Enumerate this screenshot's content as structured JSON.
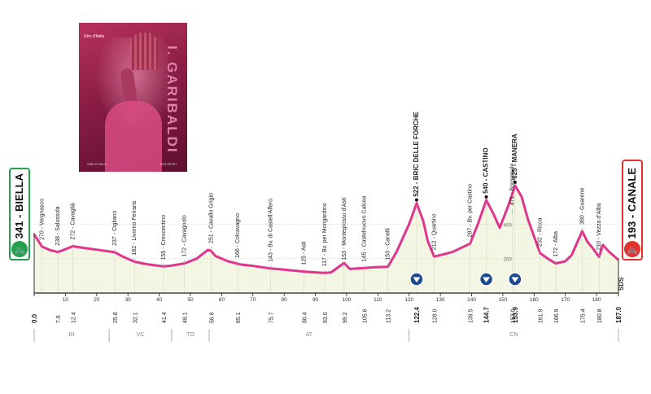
{
  "poster": {
    "logo_text": "Giro d'Italia",
    "name_text": "I. GARIBALDI",
    "footer_left": "GIRO D'ITALIA",
    "footer_right": "RCS SPORT"
  },
  "start": {
    "elevation": "341",
    "name": "BIELLA"
  },
  "finish": {
    "elevation": "193",
    "name": "CANALE"
  },
  "chart_data": {
    "type": "area",
    "title": "",
    "xlabel": "",
    "ylabel": "",
    "distance_total_km": 187.0,
    "xlim": [
      0,
      187
    ],
    "ylim": [
      0,
      700
    ],
    "y_ticks": [
      200,
      400
    ],
    "x_ticks": [
      10,
      20,
      30,
      40,
      50,
      60,
      70,
      80,
      90,
      100,
      110,
      120,
      130,
      140,
      150,
      160,
      170,
      180
    ],
    "profile": {
      "x": [
        0,
        2.5,
        5,
        7.6,
        10,
        12.4,
        16,
        20,
        25.8,
        28,
        32.1,
        36,
        41.4,
        44,
        48.1,
        52,
        55.6,
        56.6,
        58,
        62,
        66.1,
        70,
        75.7,
        80,
        86.4,
        90,
        93.0,
        95,
        99.2,
        101,
        105.6,
        109,
        113.2,
        116,
        120,
        122.4,
        124.5,
        126,
        128.0,
        131,
        134,
        139.5,
        142,
        144.7,
        147,
        149,
        152,
        153.9,
        156,
        158,
        161.9,
        164,
        166.9,
        170,
        172,
        175.4,
        177,
        179,
        180.8,
        182,
        184,
        187.0
      ],
      "y": [
        341,
        270,
        250,
        238,
        255,
        272,
        262,
        252,
        237,
        215,
        182,
        168,
        155,
        160,
        172,
        200,
        251,
        245,
        215,
        185,
        166,
        158,
        143,
        136,
        125,
        120,
        117,
        120,
        175,
        140,
        145,
        150,
        153,
        240,
        400,
        522,
        420,
        300,
        212,
        225,
        240,
        287,
        400,
        540,
        460,
        380,
        520,
        625,
        560,
        430,
        232,
        205,
        172,
        185,
        220,
        360,
        300,
        255,
        210,
        280,
        240,
        193
      ]
    },
    "waypoints": [
      {
        "km": "2.5",
        "alt": "270",
        "name": "Vergnasco"
      },
      {
        "km": "7.6",
        "alt": "238",
        "name": "Salussola"
      },
      {
        "km": "12.4",
        "alt": "272",
        "name": "Cavaglià"
      },
      {
        "km": "25.8",
        "alt": "237",
        "name": "Cigliano"
      },
      {
        "km": "32.1",
        "alt": "182",
        "name": "Livorno Ferraris"
      },
      {
        "km": "41.4",
        "alt": "155",
        "name": "Crescentino"
      },
      {
        "km": "48.1",
        "alt": "172",
        "name": "Cavagnolo"
      },
      {
        "km": "56.6",
        "alt": "251",
        "name": "Cavallo Grigio"
      },
      {
        "km": "65.1",
        "alt": "166",
        "name": "Colcavagno"
      },
      {
        "km": "75.7",
        "alt": "143",
        "name": "Bv. di Castell'Alfero"
      },
      {
        "km": "86.4",
        "alt": "125",
        "name": "Asti"
      },
      {
        "km": "93.0",
        "alt": "117",
        "name": "Bv. per Mongardino"
      },
      {
        "km": "99.2",
        "alt": "153",
        "name": "Montegrosso d'Asti"
      },
      {
        "km": "105.6",
        "alt": "145",
        "name": "Castelnuovo Calcea"
      },
      {
        "km": "113.2",
        "alt": "153",
        "name": "Canelli"
      },
      {
        "km": "122.4",
        "alt": "522",
        "name": "BRIC DELLE FORCHE",
        "gpm": true
      },
      {
        "km": "128.0",
        "alt": "212",
        "name": "Quartino"
      },
      {
        "km": "139.5",
        "alt": "287",
        "name": "Bv. per Castino"
      },
      {
        "km": "144.7",
        "alt": "540",
        "name": "CASTINO",
        "gpm": true
      },
      {
        "km": "153.0",
        "alt": "471",
        "name": "Borgomale"
      },
      {
        "km": "153.9",
        "alt": "625",
        "name": "MANERA",
        "gpm": true
      },
      {
        "km": "161.9",
        "alt": "232",
        "name": "Ricca"
      },
      {
        "km": "166.9",
        "alt": "172",
        "name": "Alba"
      },
      {
        "km": "175.4",
        "alt": "360",
        "name": "Guarene"
      },
      {
        "km": "180.8",
        "alt": "210",
        "name": "Vezza d'Alba"
      }
    ],
    "bottom_km_labels": [
      "0.0",
      "7.6",
      "12.4",
      "25.8",
      "32.1",
      "41.4",
      "48.1",
      "56.6",
      "65.1",
      "75.7",
      "86.4",
      "93.0",
      "99.2",
      "105.6",
      "113.2",
      "122.4",
      "128.0",
      "139.5",
      "144.7",
      "153.0",
      "153.9",
      "161.9",
      "166.9",
      "175.4",
      "180.8",
      "187.0"
    ],
    "bold_km_labels": [
      "0.0",
      "122.4",
      "144.7",
      "153.9",
      "187.0"
    ],
    "provinces": [
      {
        "code": "BI",
        "from": 0,
        "to": 24
      },
      {
        "code": "VC",
        "from": 24,
        "to": 44
      },
      {
        "code": "TO",
        "from": 44,
        "to": 56
      },
      {
        "code": "AT",
        "from": 56,
        "to": 120
      },
      {
        "code": "CN",
        "from": 120,
        "to": 187
      }
    ],
    "kom_markers_km": [
      122.4,
      144.7,
      153.9
    ],
    "logo_text": "SDS"
  }
}
